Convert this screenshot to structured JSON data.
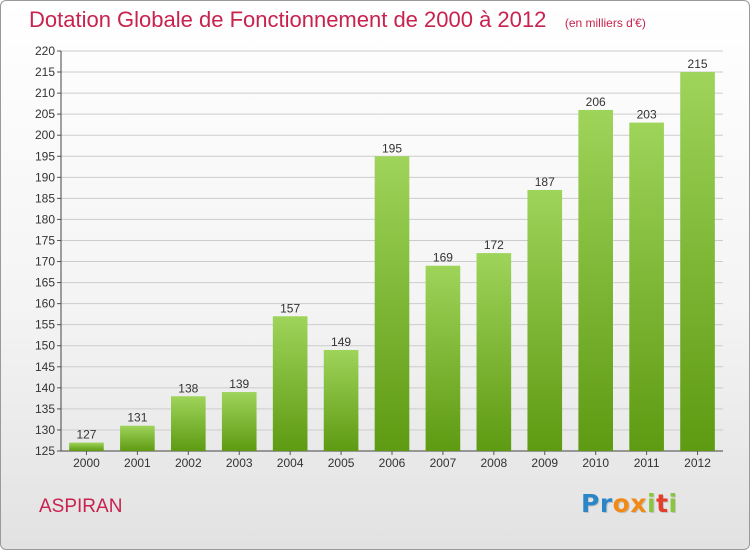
{
  "title": "Dotation Globale de Fonctionnement de 2000 à 2012",
  "subtitle": "(en milliers d'€)",
  "commune": "ASPIRAN",
  "logo": {
    "letters": [
      "P",
      "r",
      "o",
      "x",
      "i",
      "t",
      "i"
    ],
    "colors": [
      "#2b86c8",
      "#2b86c8",
      "#f08a17",
      "#f08a17",
      "#8bc53f",
      "#e33e2b",
      "#8bc53f"
    ]
  },
  "colors": {
    "bar_top": "#9ed45a",
    "bar_bottom": "#5e9a12",
    "title": "#c8224e",
    "grid": "#cccccc"
  },
  "chart_data": {
    "type": "bar",
    "categories": [
      "2000",
      "2001",
      "2002",
      "2003",
      "2004",
      "2005",
      "2006",
      "2007",
      "2008",
      "2009",
      "2010",
      "2011",
      "2012"
    ],
    "values": [
      127,
      131,
      138,
      139,
      157,
      149,
      195,
      169,
      172,
      187,
      206,
      203,
      215
    ],
    "ylim": [
      125,
      220
    ],
    "yticks": [
      125,
      130,
      135,
      140,
      145,
      150,
      155,
      160,
      165,
      170,
      175,
      180,
      185,
      190,
      195,
      200,
      205,
      210,
      215,
      220
    ],
    "grid": true,
    "data_labels": true,
    "title": "Dotation Globale de Fonctionnement de 2000 à 2012",
    "xlabel": "",
    "ylabel": ""
  }
}
